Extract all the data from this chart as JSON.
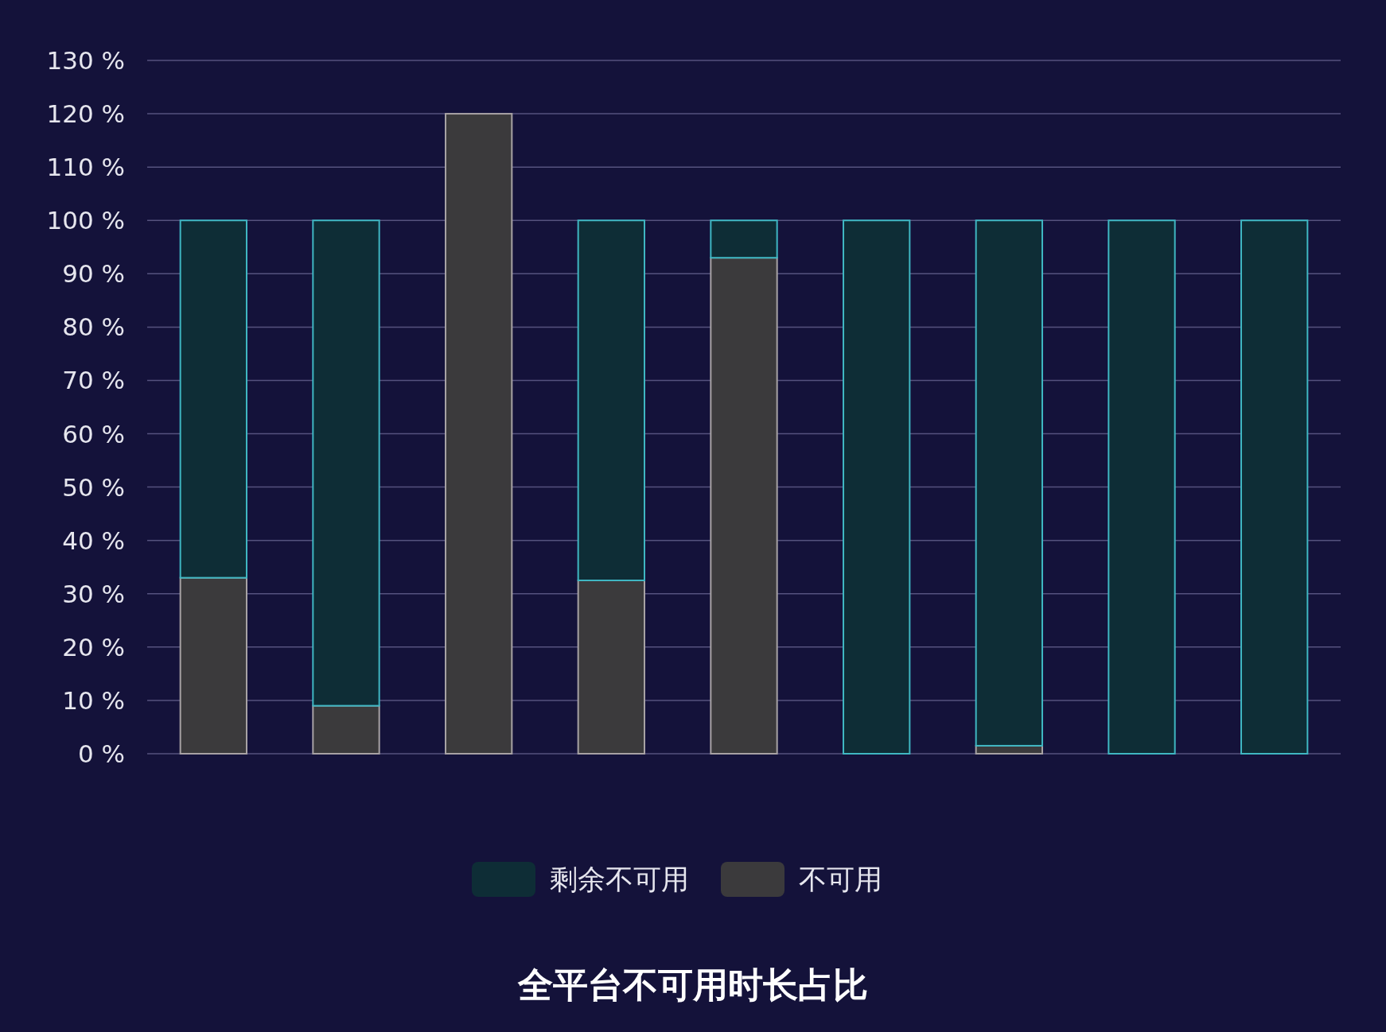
{
  "chart_data": {
    "type": "bar",
    "stacked": true,
    "title": "全平台不可用时长占比",
    "categories": [
      null,
      null,
      null,
      null,
      null,
      null,
      null,
      null,
      null
    ],
    "series": [
      {
        "name": "不可用",
        "color": "#3b3a3c",
        "values": [
          33,
          9,
          120,
          32.5,
          93,
          0,
          1.5,
          0,
          0
        ]
      },
      {
        "name": "剩余不可用",
        "color": "#0e2d36",
        "values": [
          67,
          91,
          0,
          67.5,
          7,
          100,
          98.5,
          100,
          100
        ]
      }
    ],
    "ylim": [
      0,
      130
    ],
    "yticks": [
      {
        "value": 0,
        "label": "0 %"
      },
      {
        "value": 10,
        "label": "10 %"
      },
      {
        "value": 20,
        "label": "20 %"
      },
      {
        "value": 30,
        "label": "30 %"
      },
      {
        "value": 40,
        "label": "40 %"
      },
      {
        "value": 50,
        "label": "50 %"
      },
      {
        "value": 60,
        "label": "60 %"
      },
      {
        "value": 70,
        "label": "70 %"
      },
      {
        "value": 80,
        "label": "80 %"
      },
      {
        "value": 90,
        "label": "90 %"
      },
      {
        "value": 100,
        "label": "100 %"
      },
      {
        "value": 110,
        "label": "110 %"
      },
      {
        "value": 120,
        "label": "120 %"
      },
      {
        "value": 130,
        "label": "130 %"
      }
    ],
    "grid": "y",
    "legend": "bottom",
    "tick_labels": "y"
  }
}
